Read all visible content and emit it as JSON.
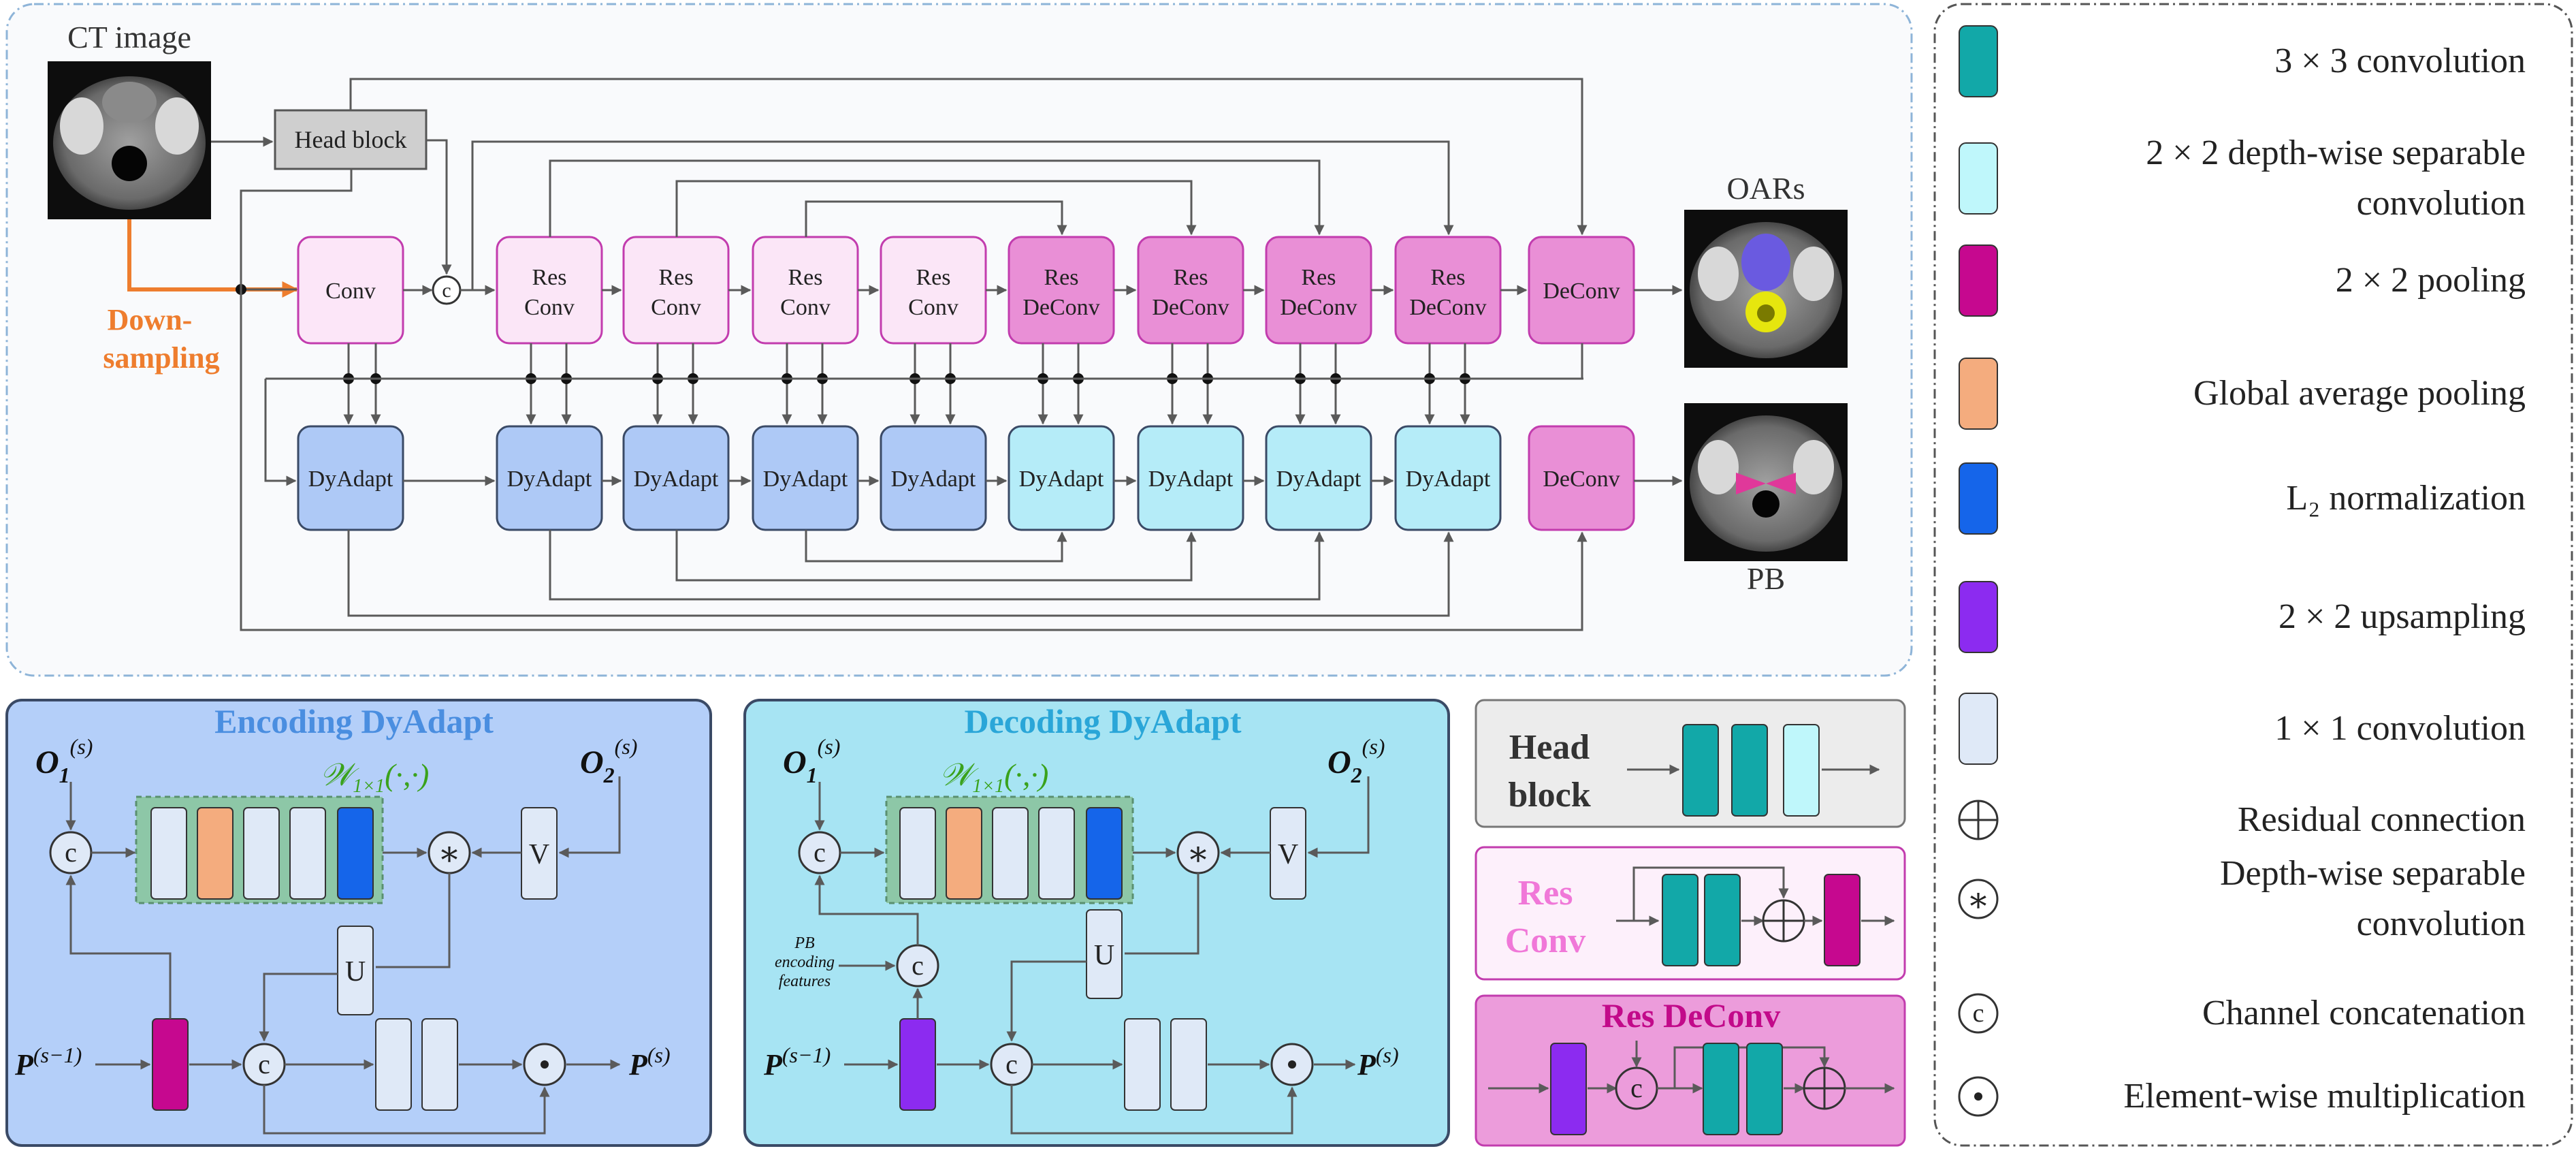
{
  "top": {
    "ct_image_label": "CT image",
    "downsampling_label": [
      "Down-",
      "sampling"
    ],
    "head_block": "Head block",
    "conv": "Conv",
    "concat_symbol": "c",
    "res_conv": [
      "Res",
      "Conv"
    ],
    "res_deconv": [
      "Res",
      "DeConv"
    ],
    "deconv": "DeConv",
    "dyadapt": "DyAdapt",
    "oars_label": "OARs",
    "pb_label": "PB"
  },
  "encoding": {
    "title": "Encoding DyAdapt",
    "o1_base": "O",
    "o1_sub": "1",
    "o1_sup": "(s)",
    "o2_base": "O",
    "o2_sub": "2",
    "o2_sup": "(s)",
    "w_label": "𝒲",
    "w_sub": "1×1",
    "w_args": "(·,·)",
    "v": "V",
    "u": "U",
    "p_in_base": "P",
    "p_in_sup": "(s−1)",
    "p_out_base": "P",
    "p_out_sup": "(s)"
  },
  "decoding": {
    "title": "Decoding DyAdapt",
    "pb_features": [
      "PB",
      "encoding",
      "features"
    ],
    "v": "V",
    "u": "U"
  },
  "small_legend": {
    "head_block": [
      "Head",
      "block"
    ],
    "res_conv": [
      "Res",
      "Conv"
    ],
    "res_deconv": "Res DeConv"
  },
  "legend": {
    "items": [
      {
        "kind": "rect",
        "color": "#12a8a8",
        "lines": [
          "3 × 3 convolution"
        ]
      },
      {
        "kind": "rect",
        "color": "#bff7fb",
        "lines": [
          "2 × 2 depth-wise separable",
          "convolution"
        ]
      },
      {
        "kind": "rect",
        "color": "#c6088f",
        "lines": [
          "2 × 2 pooling"
        ]
      },
      {
        "kind": "rect",
        "color": "#f4ac7e",
        "lines": [
          "Global average pooling"
        ]
      },
      {
        "kind": "rect",
        "color": "#1565ea",
        "lines": [
          "L₂ normalization"
        ]
      },
      {
        "kind": "rect",
        "color": "#8c2bf0",
        "lines": [
          "2 × 2 upsampling"
        ]
      },
      {
        "kind": "rect",
        "color": "#dfe9f7",
        "lines": [
          "1 × 1 convolution"
        ]
      },
      {
        "kind": "plus",
        "lines": [
          "Residual connection"
        ]
      },
      {
        "kind": "star",
        "lines": [
          "Depth-wise separable",
          "convolution"
        ]
      },
      {
        "kind": "concat",
        "lines": [
          "Channel concatenation"
        ]
      },
      {
        "kind": "dot",
        "lines": [
          "Element-wise multiplication"
        ]
      }
    ]
  },
  "colors": {
    "teal": "#12a8a8",
    "light_cyan": "#bff7fb",
    "magenta": "#c6088f",
    "orange": "#f4ac7e",
    "blue": "#1565ea",
    "purple": "#8c2bf0",
    "light_blue": "#dfe9f7",
    "enc_panel": "#b4cff9",
    "dec_panel": "#a7e4f3",
    "res_conv_fill": "#fbe6f7",
    "res_deconv_fill": "#e98fd6",
    "dyadapt_enc": "#aec9f6",
    "dyadapt_dec": "#b5ecf8"
  }
}
